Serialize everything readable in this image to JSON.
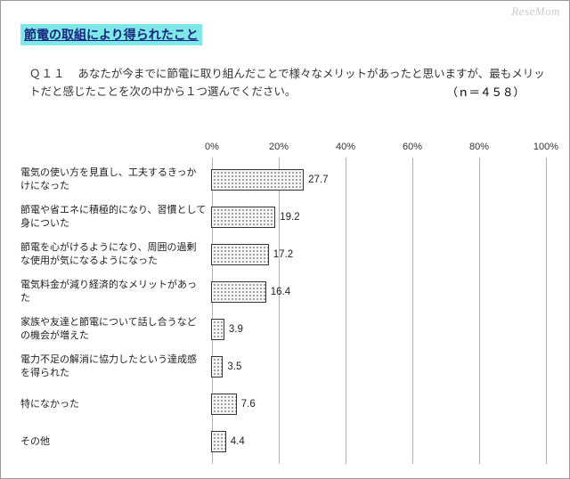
{
  "watermark": "ReseMom",
  "title": "節電の取組により得られたこと",
  "question_num": "Ｑ１１",
  "question_text": "あなたが今までに節電に取り組んだことで様々なメリットがあったと思いますが、最もメリットだと感じたことを次の中から１つ選んでください。",
  "n_label": "（ｎ＝４５８）",
  "chart": {
    "type": "bar-horizontal",
    "xmax": 100,
    "ticks": [
      0,
      20,
      40,
      60,
      80,
      100
    ],
    "tick_suffix": "%",
    "label_width": 215,
    "bar_border": "#333333",
    "bar_fill_bg": "#f5f5f5",
    "bar_dot_color": "#888888",
    "grid_color": "#b0b0b0",
    "font_size_label": 11,
    "font_size_value": 11.5,
    "rows": [
      {
        "label": "電気の使い方を見直し、工夫するきっかけになった",
        "value": 27.7
      },
      {
        "label": "節電や省エネに積極的になり、習慣として身についた",
        "value": 19.2
      },
      {
        "label": "節電を心がけるようになり、周囲の過剰な使用が気になるようになった",
        "value": 17.2
      },
      {
        "label": "電気料金が減り経済的なメリットがあった",
        "value": 16.4
      },
      {
        "label": "家族や友達と節電について話し合うなどの機会が増えた",
        "value": 3.9
      },
      {
        "label": "電力不足の解消に協力したという達成感を得られた",
        "value": 3.5
      },
      {
        "label": "特になかった",
        "value": 7.6
      },
      {
        "label": "その他",
        "value": 4.4
      }
    ]
  }
}
